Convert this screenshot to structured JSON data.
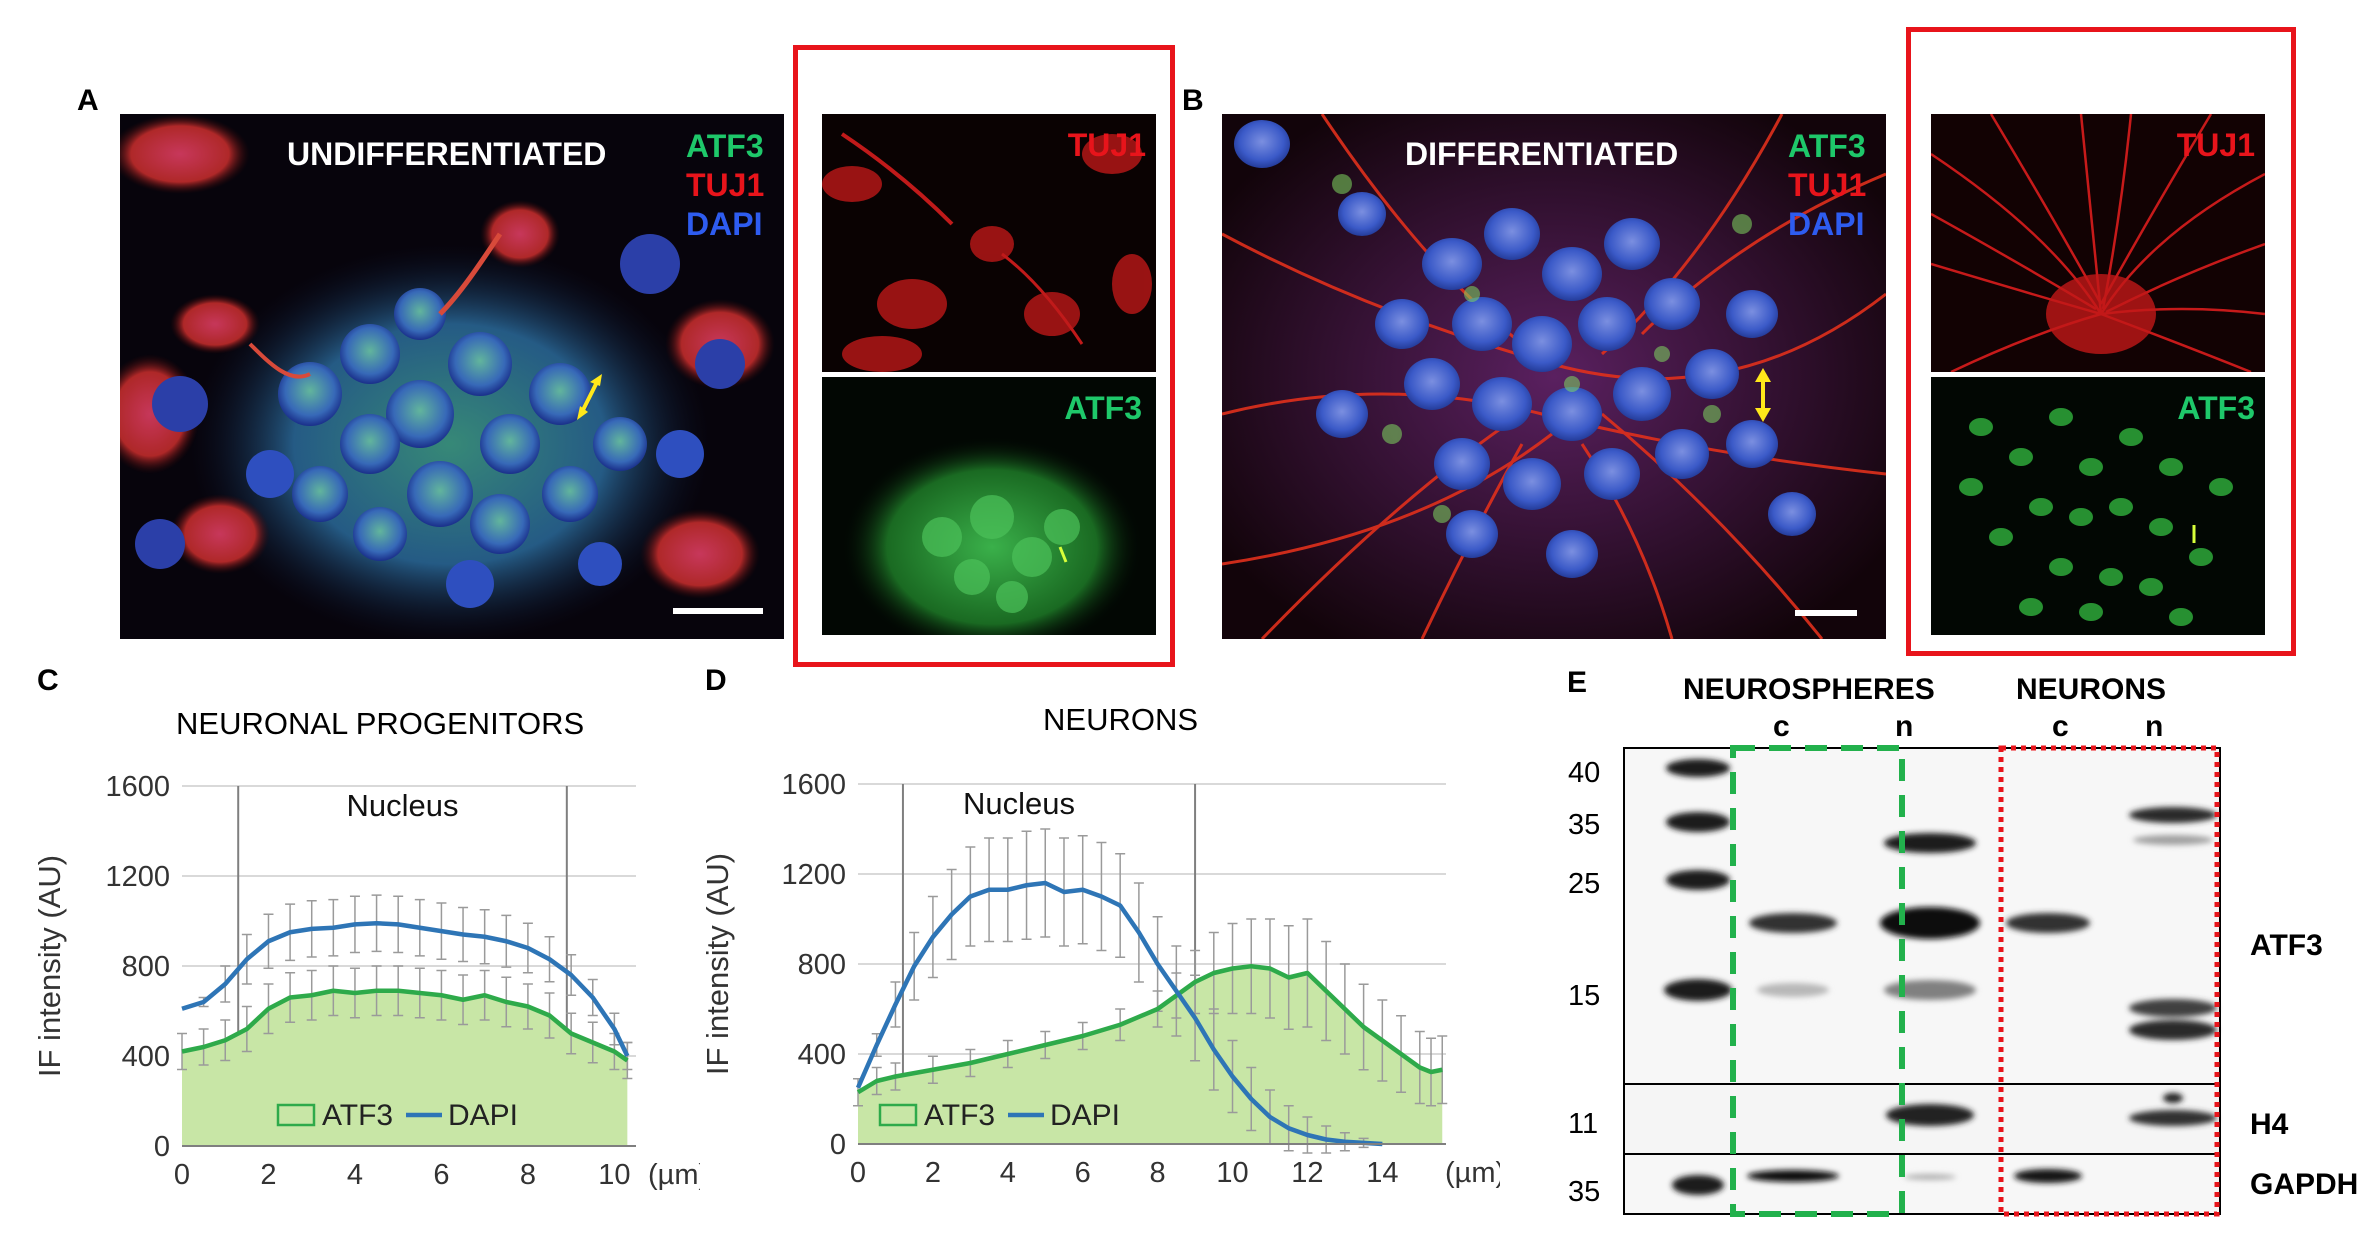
{
  "panels": {
    "A": {
      "letter": "A",
      "condition": "UNDIFFERENTIATED",
      "legend": [
        {
          "text": "ATF3",
          "color": "#1ec86a"
        },
        {
          "text": "TUJ1",
          "color": "#e8141b"
        },
        {
          "text": "DAPI",
          "color": "#2e5cf0"
        }
      ],
      "split_top_label": "TUJ1",
      "split_bottom_label": "ATF3"
    },
    "B": {
      "letter": "B",
      "condition": "DIFFERENTIATED",
      "legend": [
        {
          "text": "ATF3",
          "color": "#1ec86a"
        },
        {
          "text": "TUJ1",
          "color": "#e8141b"
        },
        {
          "text": "DAPI",
          "color": "#2e5cf0"
        }
      ],
      "split_top_label": "TUJ1",
      "split_bottom_label": "ATF3"
    },
    "C": {
      "letter": "C"
    },
    "D": {
      "letter": "D"
    },
    "E": {
      "letter": "E",
      "group_labels": [
        "NEUROSPHERES",
        "NEURONS"
      ],
      "lane_labels": [
        "c",
        "n",
        "c",
        "n"
      ],
      "mw_markers": [
        "40",
        "35",
        "25",
        "15",
        "11",
        "35"
      ],
      "band_labels": [
        "ATF3",
        "H4",
        "GAPDH"
      ],
      "neurospheres_box_color": "#22b14c",
      "neurons_box_color": "#e8141b"
    }
  },
  "chart_data": [
    {
      "type": "area",
      "title": "NEURONAL PROGENITORS",
      "ylabel": "IF intensity (AU)",
      "xlabel": "(µm)",
      "annotation": "Nucleus",
      "nucleus_bounds": [
        1.3,
        8.9
      ],
      "xlim": [
        0,
        10.5
      ],
      "ylim": [
        0,
        1600
      ],
      "xticks": [
        "0",
        "2",
        "4",
        "6",
        "8",
        "10"
      ],
      "yticks": [
        "0",
        "400",
        "800",
        "1200",
        "1600"
      ],
      "grid": true,
      "legend_position": "bottom-center",
      "series": [
        {
          "name": "ATF3",
          "color": "#2eaa4a",
          "fill": "#c8e6a6",
          "x": [
            0,
            0.5,
            1,
            1.5,
            2,
            2.5,
            3,
            3.5,
            4,
            4.5,
            5,
            5.5,
            6,
            6.5,
            7,
            7.5,
            8,
            8.5,
            9,
            9.5,
            10,
            10.3
          ],
          "y": [
            420,
            440,
            470,
            520,
            610,
            660,
            670,
            690,
            680,
            690,
            690,
            680,
            670,
            650,
            670,
            640,
            620,
            580,
            500,
            460,
            420,
            380
          ],
          "error": [
            80,
            80,
            90,
            100,
            110,
            110,
            110,
            110,
            110,
            110,
            110,
            110,
            110,
            110,
            110,
            110,
            100,
            100,
            90,
            90,
            80,
            80
          ]
        },
        {
          "name": "DAPI",
          "color": "#2e75b6",
          "x": [
            0,
            0.5,
            1,
            1.5,
            2,
            2.5,
            3,
            3.5,
            4,
            4.5,
            5,
            5.5,
            6,
            6.5,
            7,
            7.5,
            8,
            8.5,
            9,
            9.5,
            10,
            10.3
          ],
          "y": [
            610,
            640,
            720,
            830,
            910,
            950,
            965,
            970,
            985,
            990,
            985,
            970,
            955,
            940,
            930,
            910,
            880,
            830,
            760,
            660,
            520,
            400
          ],
          "error": [
            0,
            20,
            80,
            110,
            120,
            125,
            125,
            125,
            125,
            125,
            125,
            125,
            125,
            120,
            120,
            115,
            110,
            100,
            90,
            80,
            70,
            60
          ]
        }
      ]
    },
    {
      "type": "area",
      "title": "NEURONS",
      "ylabel": "IF intensity (AU)",
      "xlabel": "(µm)",
      "annotation": "Nucleus",
      "nucleus_bounds": [
        1.2,
        9.0
      ],
      "xlim": [
        0,
        15.7
      ],
      "ylim": [
        0,
        1600
      ],
      "xticks": [
        "0",
        "2",
        "4",
        "6",
        "8",
        "10",
        "12",
        "14"
      ],
      "yticks": [
        "0",
        "400",
        "800",
        "1200",
        "1600"
      ],
      "grid": true,
      "legend_position": "bottom-left",
      "series": [
        {
          "name": "ATF3",
          "color": "#2eaa4a",
          "fill": "#c8e6a6",
          "x": [
            0,
            0.5,
            1,
            2,
            3,
            4,
            5,
            6,
            7,
            8,
            8.5,
            9,
            9.5,
            10,
            10.5,
            11,
            11.5,
            12,
            12.5,
            13,
            13.5,
            14,
            14.5,
            15,
            15.3,
            15.6
          ],
          "y": [
            230,
            280,
            300,
            330,
            360,
            400,
            440,
            480,
            530,
            600,
            660,
            720,
            760,
            780,
            790,
            780,
            740,
            760,
            680,
            600,
            520,
            460,
            400,
            340,
            320,
            330
          ],
          "error": [
            60,
            60,
            60,
            60,
            60,
            60,
            60,
            60,
            70,
            80,
            100,
            140,
            180,
            200,
            210,
            220,
            230,
            240,
            220,
            200,
            190,
            180,
            170,
            160,
            150,
            150
          ]
        },
        {
          "name": "DAPI",
          "color": "#2e75b6",
          "x": [
            0,
            0.5,
            1,
            1.5,
            2,
            2.5,
            3,
            3.5,
            4,
            4.5,
            5,
            5.5,
            6,
            6.5,
            7,
            7.5,
            8,
            8.5,
            9,
            9.5,
            10,
            10.5,
            11,
            11.5,
            12,
            12.5,
            13,
            13.5,
            14
          ],
          "y": [
            250,
            440,
            620,
            790,
            920,
            1020,
            1100,
            1130,
            1130,
            1150,
            1160,
            1120,
            1130,
            1100,
            1060,
            940,
            800,
            680,
            560,
            420,
            300,
            200,
            120,
            70,
            40,
            20,
            10,
            5,
            0
          ],
          "error": [
            0,
            50,
            100,
            150,
            180,
            200,
            220,
            230,
            230,
            240,
            240,
            240,
            240,
            240,
            230,
            220,
            210,
            200,
            190,
            180,
            160,
            140,
            120,
            100,
            80,
            60,
            40,
            20,
            0
          ]
        }
      ]
    }
  ]
}
